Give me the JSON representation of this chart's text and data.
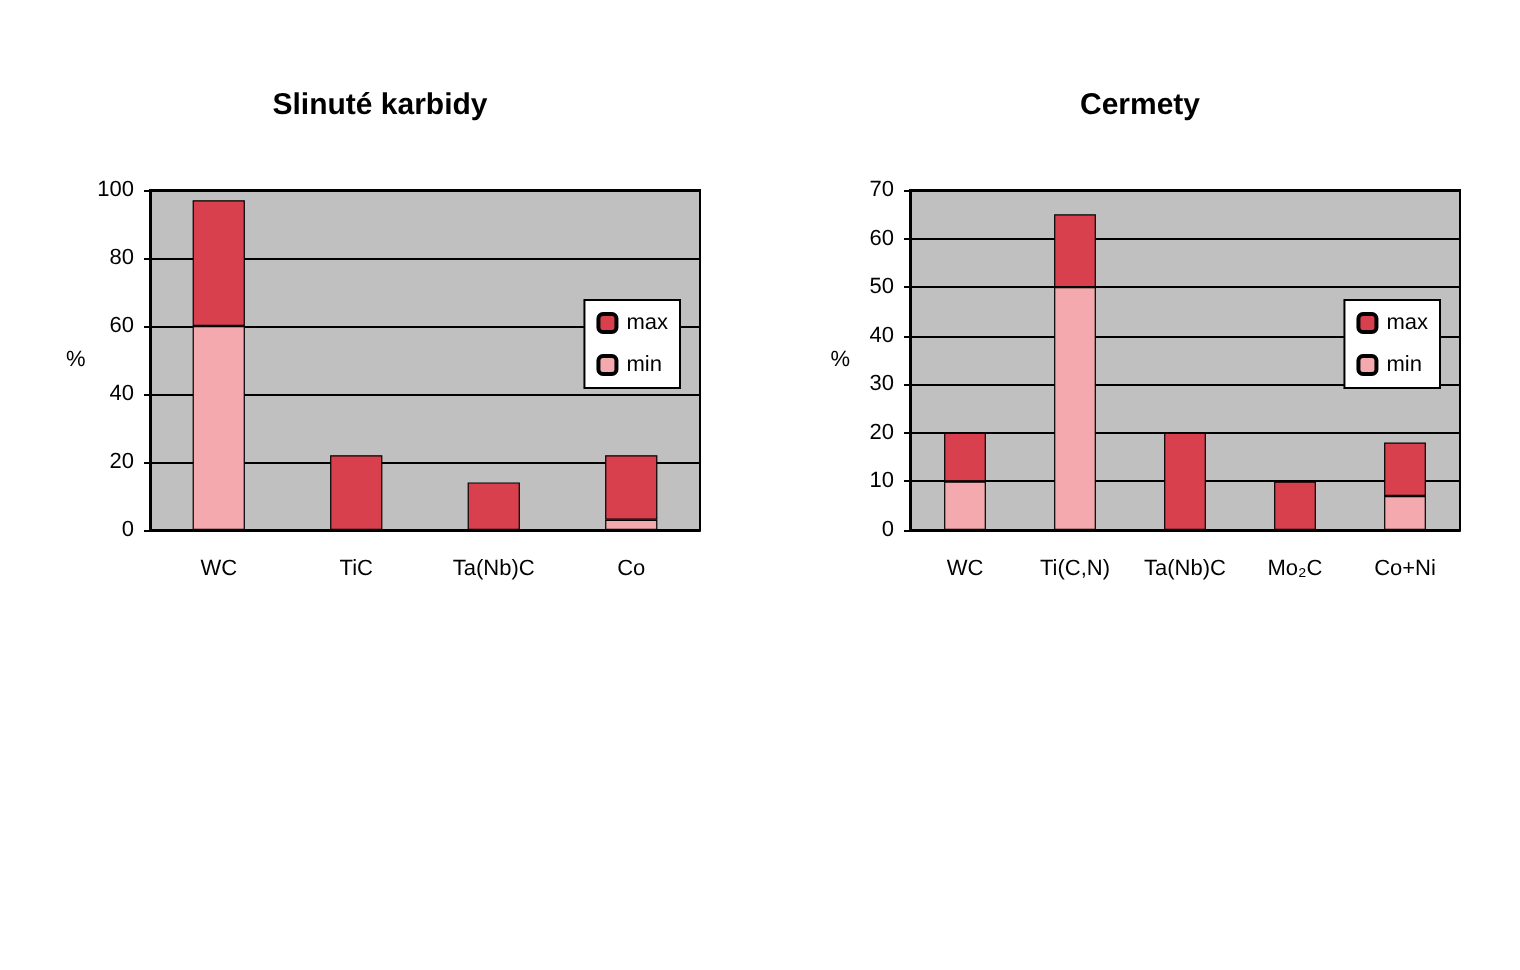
{
  "chart_data": [
    {
      "type": "bar",
      "title": "Slinuté karbidy",
      "ylabel": "%",
      "categories": [
        "WC",
        "TiC",
        "Ta(Nb)C",
        "Co"
      ],
      "stacked": true,
      "series": [
        {
          "name": "min",
          "color": "#f4a9ae",
          "values": [
            60,
            0,
            0,
            3
          ]
        },
        {
          "name": "max",
          "color": "#d9404e",
          "values": [
            37,
            22,
            14,
            19
          ]
        }
      ],
      "ylim": [
        0,
        100
      ],
      "yticks": [
        0,
        20,
        40,
        60,
        80,
        100
      ],
      "grid": "y",
      "legend": "right"
    },
    {
      "type": "bar",
      "title": "Cermety",
      "ylabel": "%",
      "categories": [
        "WC",
        "Ti(C,N)",
        "Ta(Nb)C",
        "Mo₂C",
        "Co+Ni"
      ],
      "stacked": true,
      "series": [
        {
          "name": "min",
          "color": "#f4a9ae",
          "values": [
            10,
            50,
            0,
            0,
            7
          ]
        },
        {
          "name": "max",
          "color": "#d9404e",
          "values": [
            10,
            15,
            20,
            10,
            11
          ]
        }
      ],
      "ylim": [
        0,
        70
      ],
      "yticks": [
        0,
        10,
        20,
        30,
        40,
        50,
        60,
        70
      ],
      "grid": "y",
      "legend": "right"
    }
  ]
}
